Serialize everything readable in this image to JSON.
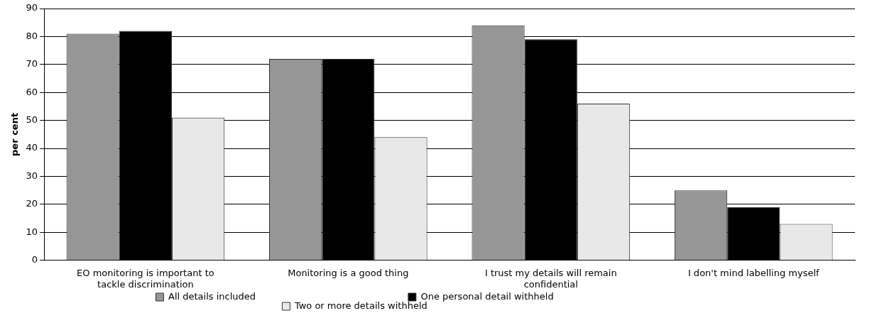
{
  "chart_data": {
    "type": "bar",
    "ylabel": "per cent",
    "categories": [
      "EO monitoring is important to tackle discrimination",
      "Monitoring is a good thing",
      "I trust my details will remain confidential",
      "I don't mind labelling myself"
    ],
    "series": [
      {
        "name": "All details included",
        "color": "#969696",
        "values": [
          81,
          72,
          84,
          25
        ]
      },
      {
        "name": "One personal detail withheld",
        "color": "#000000",
        "values": [
          82,
          72,
          79,
          19
        ]
      },
      {
        "name": "Two or more details withheld",
        "color": "#e8e8e8",
        "values": [
          51,
          44,
          56,
          13
        ]
      }
    ],
    "ylim": [
      0,
      90
    ],
    "yticks": [
      0,
      10,
      20,
      30,
      40,
      50,
      60,
      70,
      80,
      90
    ],
    "grid": "y",
    "legend": "bottom"
  }
}
